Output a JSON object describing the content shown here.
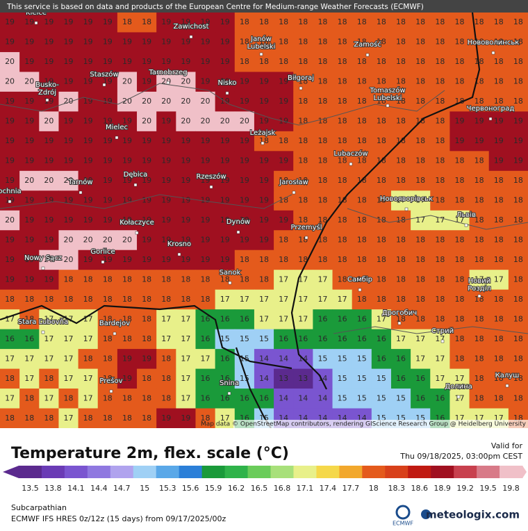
{
  "header": {
    "notice": "This service is based on data and products of the European Centre for Medium-range Weather Forecasts (ECMWF)"
  },
  "map": {
    "attribution": "Map data © OpenStreetMap contributors, rendering GIScience Research Group @ Heidelberg University",
    "grid": {
      "rows": [
        [
          19,
          19,
          19,
          19,
          19,
          19,
          18,
          18,
          19,
          19,
          19,
          19,
          18,
          18,
          18,
          18,
          18,
          18,
          18,
          18,
          18,
          18,
          18,
          18,
          18,
          18,
          18
        ],
        [
          19,
          19,
          19,
          19,
          19,
          19,
          19,
          19,
          19,
          19,
          19,
          19,
          18,
          18,
          18,
          18,
          18,
          18,
          18,
          18,
          18,
          18,
          18,
          18,
          18,
          18,
          18
        ],
        [
          20,
          19,
          19,
          19,
          19,
          19,
          19,
          19,
          19,
          19,
          19,
          19,
          18,
          18,
          18,
          18,
          18,
          18,
          18,
          18,
          18,
          18,
          18,
          18,
          18,
          18,
          18
        ],
        [
          20,
          20,
          19,
          19,
          19,
          19,
          20,
          19,
          20,
          20,
          19,
          19,
          19,
          19,
          19,
          18,
          18,
          18,
          18,
          18,
          18,
          18,
          18,
          18,
          18,
          18,
          18
        ],
        [
          19,
          19,
          19,
          20,
          19,
          19,
          20,
          20,
          20,
          20,
          20,
          19,
          19,
          19,
          19,
          18,
          18,
          18,
          18,
          18,
          18,
          18,
          18,
          18,
          18,
          18,
          18
        ],
        [
          19,
          19,
          20,
          19,
          19,
          19,
          19,
          20,
          19,
          20,
          20,
          20,
          20,
          19,
          19,
          18,
          18,
          18,
          18,
          18,
          18,
          18,
          18,
          19,
          19,
          19,
          19
        ],
        [
          19,
          19,
          19,
          19,
          19,
          19,
          19,
          19,
          19,
          19,
          19,
          19,
          19,
          18,
          18,
          18,
          18,
          18,
          18,
          18,
          18,
          18,
          18,
          19,
          19,
          19,
          19
        ],
        [
          19,
          19,
          19,
          19,
          19,
          19,
          19,
          19,
          19,
          19,
          19,
          19,
          19,
          19,
          19,
          18,
          18,
          18,
          18,
          18,
          18,
          18,
          18,
          18,
          18,
          19,
          19
        ],
        [
          19,
          20,
          20,
          20,
          19,
          19,
          19,
          19,
          19,
          19,
          19,
          19,
          19,
          19,
          18,
          18,
          18,
          18,
          18,
          18,
          18,
          18,
          18,
          18,
          18,
          18,
          18
        ],
        [
          19,
          19,
          19,
          19,
          19,
          19,
          19,
          19,
          19,
          19,
          19,
          19,
          19,
          19,
          18,
          18,
          18,
          18,
          18,
          18,
          17,
          17,
          18,
          18,
          18,
          18,
          18
        ],
        [
          20,
          19,
          19,
          19,
          19,
          19,
          19,
          19,
          19,
          19,
          19,
          19,
          19,
          19,
          19,
          18,
          18,
          18,
          18,
          18,
          18,
          17,
          17,
          17,
          18,
          18,
          18
        ],
        [
          19,
          19,
          19,
          20,
          20,
          20,
          20,
          19,
          19,
          19,
          19,
          19,
          19,
          19,
          18,
          18,
          18,
          18,
          18,
          18,
          18,
          18,
          18,
          18,
          18,
          18,
          18
        ],
        [
          19,
          19,
          20,
          20,
          19,
          19,
          19,
          19,
          19,
          19,
          19,
          19,
          18,
          18,
          18,
          18,
          18,
          18,
          18,
          18,
          18,
          18,
          18,
          18,
          18,
          18,
          18
        ],
        [
          19,
          19,
          19,
          18,
          18,
          18,
          18,
          18,
          18,
          18,
          18,
          18,
          18,
          18,
          17,
          17,
          17,
          18,
          18,
          18,
          18,
          18,
          18,
          18,
          17,
          17,
          18
        ],
        [
          18,
          18,
          18,
          18,
          18,
          18,
          18,
          18,
          18,
          18,
          18,
          17,
          17,
          17,
          17,
          17,
          17,
          17,
          18,
          18,
          18,
          18,
          18,
          18,
          18,
          18,
          18
        ],
        [
          17,
          18,
          17,
          17,
          17,
          18,
          18,
          18,
          17,
          17,
          16,
          16,
          16,
          17,
          17,
          17,
          16,
          16,
          16,
          17,
          18,
          18,
          18,
          18,
          18,
          18,
          18
        ],
        [
          16,
          16,
          17,
          17,
          17,
          18,
          18,
          18,
          17,
          17,
          16,
          15,
          15,
          15,
          16,
          16,
          16,
          16,
          16,
          16,
          17,
          17,
          17,
          18,
          18,
          18,
          18
        ],
        [
          17,
          17,
          17,
          17,
          18,
          18,
          19,
          19,
          18,
          17,
          17,
          16,
          15,
          14,
          14,
          14,
          15,
          15,
          15,
          16,
          16,
          17,
          17,
          18,
          18,
          18,
          18
        ],
        [
          18,
          17,
          18,
          17,
          17,
          18,
          19,
          18,
          18,
          17,
          16,
          16,
          15,
          14,
          13,
          13,
          14,
          15,
          15,
          15,
          16,
          16,
          17,
          17,
          18,
          18,
          18
        ],
        [
          17,
          18,
          17,
          18,
          17,
          18,
          18,
          18,
          18,
          17,
          16,
          16,
          16,
          16,
          14,
          14,
          14,
          15,
          15,
          15,
          15,
          16,
          16,
          17,
          18,
          18,
          18
        ],
        [
          18,
          18,
          18,
          17,
          18,
          18,
          18,
          18,
          19,
          19,
          18,
          17,
          16,
          15,
          14,
          14,
          14,
          14,
          14,
          15,
          15,
          15,
          16,
          17,
          17,
          17,
          18
        ]
      ]
    },
    "places": [
      [
        "Kielce"
      ],
      [
        "Zawichost"
      ],
      [
        "Janów",
        "Lubelski"
      ],
      [
        "Zamość"
      ],
      [
        "Нововолинськ"
      ],
      [
        "Staszów"
      ],
      [
        "Tarnobrzeg"
      ],
      [
        "Nisko"
      ],
      [
        "Biłgoraj"
      ],
      [
        "Busko-",
        "Zdrój"
      ],
      [
        "Tomaszów",
        "Lubelski"
      ],
      [
        "Червоноград"
      ],
      [
        "Mielec"
      ],
      [
        "Leżajsk"
      ],
      [
        "Lubaczów"
      ],
      [
        "Dębica"
      ],
      [
        "Rzeszów"
      ],
      [
        "Tarnów"
      ],
      [
        "Jarosław"
      ],
      [
        "ochnia"
      ],
      [
        "Новояворівськ"
      ],
      [
        "Львів"
      ],
      [
        "Kołaczyce"
      ],
      [
        "Dynów"
      ],
      [
        "Przemyśl"
      ],
      [
        "Krosno"
      ],
      [
        "Gorlice"
      ],
      [
        "Nowy Sącz"
      ],
      [
        "Sanok"
      ],
      [
        "Самбір"
      ],
      [
        "Новий",
        "Розділ"
      ],
      [
        "Stara Ľubovňa"
      ],
      [
        "Bardejov"
      ],
      [
        "Дрогобич"
      ],
      [
        "Стрий"
      ],
      [
        "Prešov"
      ],
      [
        "Snina"
      ],
      [
        "Калуш"
      ],
      [
        "Долина"
      ]
    ]
  },
  "legend": {
    "title": "Temperature 2m, flex. scale (°C)",
    "valid_label": "Valid for",
    "valid_time": "Thu 09/18/2025, 03:00pm CEST",
    "ticks": [
      13.5,
      13.8,
      14.1,
      14.4,
      14.7,
      15,
      15.3,
      15.6,
      15.9,
      16.2,
      16.5,
      16.8,
      17.1,
      17.4,
      17.7,
      18,
      18.3,
      18.6,
      18.9,
      19.2,
      19.5,
      19.8
    ],
    "colors": [
      "#5b2a8e",
      "#6a3bb5",
      "#7a55d0",
      "#8f78e0",
      "#b0a3ee",
      "#9fd0f5",
      "#5aa8e8",
      "#2b7fd8",
      "#1a9a3a",
      "#2fb34a",
      "#6acc5a",
      "#a8e07a",
      "#e8f08a",
      "#f5d84a",
      "#f2a82c",
      "#e45a1c",
      "#d8401a",
      "#c01a12",
      "#a01020",
      "#c8404e",
      "#d87a88",
      "#f0c0c8"
    ]
  },
  "footer": {
    "region": "Subcarpathian",
    "model": "ECMWF IFS HRES 0z/12z (15 days) from 09/17/2025/00z",
    "ecmwf": "ECMWF",
    "brand": "meteologix.com"
  }
}
